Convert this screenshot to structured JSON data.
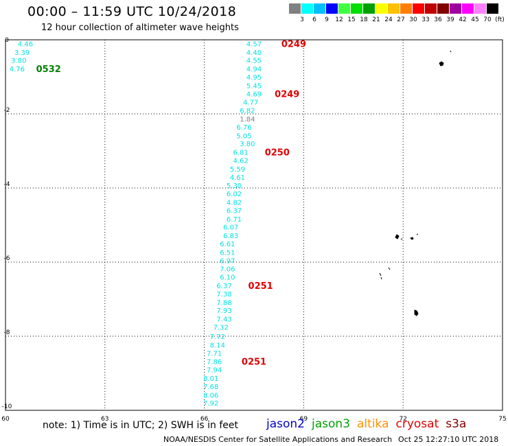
{
  "title": "00:00 – 11:59 UTC 10/24/2018",
  "subtitle": "12 hour collection of altimeter wave heights",
  "colorbar": {
    "labels": [
      "3",
      "6",
      "9",
      "12",
      "15",
      "18",
      "21",
      "24",
      "27",
      "30",
      "33",
      "36",
      "39",
      "42",
      "45",
      "70",
      "(ft)"
    ],
    "colors": [
      "#808080",
      "#00ffff",
      "#00bfff",
      "#0000ff",
      "#40ff40",
      "#00e000",
      "#00a000",
      "#ffff00",
      "#ffc000",
      "#ff8000",
      "#ff0000",
      "#c00000",
      "#800000",
      "#a000a0",
      "#ff00ff",
      "#ff80ff",
      "#000000"
    ]
  },
  "note": "note:  1) Time is in UTC;  2) SWH is in feet",
  "satellites": [
    {
      "name": "jason2",
      "color": "#0000d0"
    },
    {
      "name": "jason3",
      "color": "#00a000"
    },
    {
      "name": "altika",
      "color": "#ff9000"
    },
    {
      "name": "cryosat",
      "color": "#e00000"
    },
    {
      "name": "s3a",
      "color": "#800000"
    }
  ],
  "footer": "NOAA/NESDIS Center for Satellite Applications and Research",
  "footer_timestamp": "Oct 25 12:27:10 UTC 2018",
  "chart_data": {
    "type": "scatter",
    "xlim": [
      60,
      75
    ],
    "ylim": [
      -10,
      0
    ],
    "x_ticks": [
      "60",
      "63",
      "66",
      "69",
      "72",
      "75"
    ],
    "y_ticks": [
      "0",
      "-2",
      "-4",
      "-6",
      "-8",
      "-10"
    ],
    "grid": true,
    "series": [
      {
        "color": "#00e0e0",
        "points": [
          {
            "x": 67.5,
            "y": -0.1,
            "v": "4.57"
          },
          {
            "x": 67.5,
            "y": -0.33,
            "v": "4.40"
          },
          {
            "x": 67.5,
            "y": -0.55,
            "v": "4.55"
          },
          {
            "x": 67.5,
            "y": -0.78,
            "v": "4.94"
          },
          {
            "x": 67.5,
            "y": -1.0,
            "v": "4.95"
          },
          {
            "x": 67.5,
            "y": -1.23,
            "v": "5.45"
          },
          {
            "x": 67.5,
            "y": -1.45,
            "v": "4.69"
          },
          {
            "x": 67.4,
            "y": -1.68,
            "v": "4.77"
          },
          {
            "x": 67.3,
            "y": -1.9,
            "v": "6.82"
          },
          {
            "x": 67.2,
            "y": -2.35,
            "v": "6.76"
          },
          {
            "x": 67.2,
            "y": -2.58,
            "v": "5.05"
          },
          {
            "x": 67.3,
            "y": -2.8,
            "v": "3.80"
          },
          {
            "x": 67.1,
            "y": -3.03,
            "v": "6.81"
          },
          {
            "x": 67.1,
            "y": -3.25,
            "v": "4.62"
          },
          {
            "x": 67.0,
            "y": -3.48,
            "v": "5.59"
          },
          {
            "x": 67.0,
            "y": -3.7,
            "v": "4.61"
          },
          {
            "x": 66.9,
            "y": -3.93,
            "v": "5.30"
          },
          {
            "x": 66.9,
            "y": -4.15,
            "v": "6.02"
          },
          {
            "x": 66.9,
            "y": -4.38,
            "v": "4.82"
          },
          {
            "x": 66.9,
            "y": -4.6,
            "v": "6.37"
          },
          {
            "x": 66.9,
            "y": -4.83,
            "v": "6.71"
          },
          {
            "x": 66.8,
            "y": -5.05,
            "v": "6.07"
          },
          {
            "x": 66.8,
            "y": -5.28,
            "v": "6.83"
          },
          {
            "x": 66.7,
            "y": -5.5,
            "v": "6.61"
          },
          {
            "x": 66.7,
            "y": -5.73,
            "v": "6.51"
          },
          {
            "x": 66.7,
            "y": -5.95,
            "v": "6.97"
          },
          {
            "x": 66.7,
            "y": -6.18,
            "v": "7.06"
          },
          {
            "x": 66.7,
            "y": -6.4,
            "v": "6.10"
          },
          {
            "x": 66.6,
            "y": -6.63,
            "v": "6.37"
          },
          {
            "x": 66.6,
            "y": -6.85,
            "v": "7.38"
          },
          {
            "x": 66.6,
            "y": -7.08,
            "v": "7.88"
          },
          {
            "x": 66.6,
            "y": -7.3,
            "v": "7.93"
          },
          {
            "x": 66.6,
            "y": -7.53,
            "v": "7.43"
          },
          {
            "x": 66.5,
            "y": -7.75,
            "v": "7.32"
          },
          {
            "x": 66.4,
            "y": -8.0,
            "v": "7.72"
          },
          {
            "x": 66.4,
            "y": -8.23,
            "v": "8.14"
          },
          {
            "x": 66.3,
            "y": -8.45,
            "v": "7.71"
          },
          {
            "x": 66.3,
            "y": -8.68,
            "v": "7.86"
          },
          {
            "x": 66.3,
            "y": -8.9,
            "v": "7.94"
          },
          {
            "x": 66.2,
            "y": -9.13,
            "v": "8.01"
          },
          {
            "x": 66.2,
            "y": -9.35,
            "v": "7.68"
          },
          {
            "x": 66.2,
            "y": -9.58,
            "v": "8.06"
          },
          {
            "x": 66.2,
            "y": -9.8,
            "v": "7.92"
          },
          {
            "x": 60.6,
            "y": -0.1,
            "v": "4.46"
          },
          {
            "x": 60.5,
            "y": -0.33,
            "v": "3.39"
          },
          {
            "x": 60.4,
            "y": -0.55,
            "v": "3.80"
          },
          {
            "x": 60.35,
            "y": -0.78,
            "v": "4.76"
          }
        ]
      },
      {
        "color": "#808080",
        "points": [
          {
            "x": 67.3,
            "y": -2.13,
            "v": "1.84"
          }
        ]
      }
    ],
    "time_labels": [
      {
        "x": 68.7,
        "y": -0.1,
        "text": "0249",
        "color": "#e00000"
      },
      {
        "x": 68.5,
        "y": -1.45,
        "text": "0249",
        "color": "#e00000"
      },
      {
        "x": 68.2,
        "y": -3.03,
        "text": "0250",
        "color": "#e00000"
      },
      {
        "x": 67.7,
        "y": -6.63,
        "text": "0251",
        "color": "#e00000"
      },
      {
        "x": 67.5,
        "y": -8.68,
        "text": "0251",
        "color": "#e00000"
      },
      {
        "x": 61.3,
        "y": -0.78,
        "text": "0532",
        "color": "#008000"
      }
    ]
  }
}
